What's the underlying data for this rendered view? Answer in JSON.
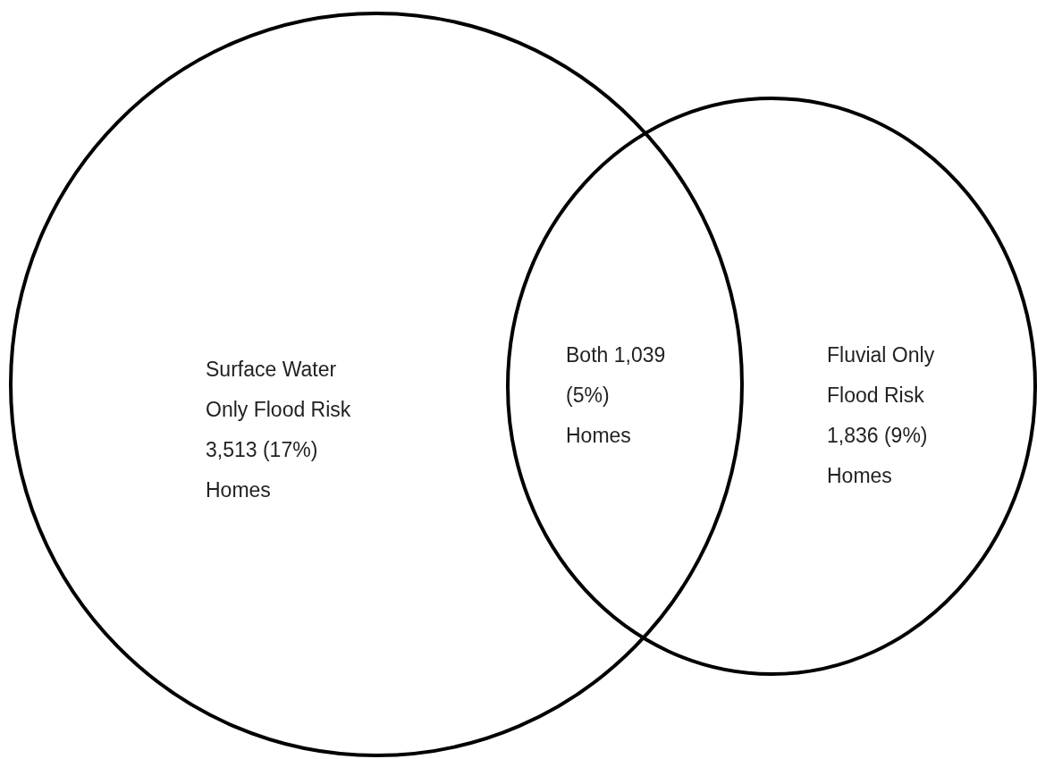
{
  "chart_data": {
    "type": "other",
    "categories": [
      "Surface Water Only Flood Risk",
      "Both",
      "Fluvial Only Flood Risk"
    ],
    "values": [
      3513,
      1039,
      1836
    ],
    "value_labels": [
      "3,513 (17%) Homes",
      "1,039 (5%) Homes",
      "1,836 (9%) Homes"
    ]
  }
}
